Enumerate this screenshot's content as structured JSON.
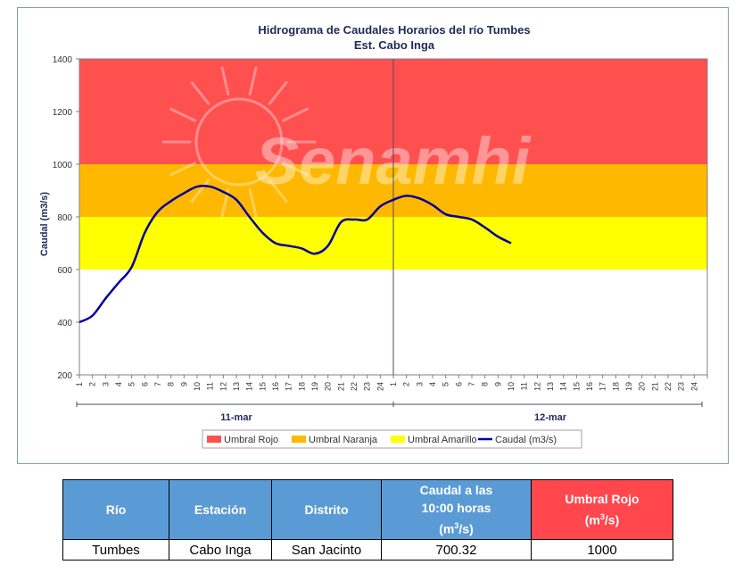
{
  "chart_data": {
    "type": "line",
    "title": "Hidrograma de Caudales Horarios del río Tumbes",
    "subtitle": "Est. Cabo Inga",
    "ylabel": "Caudal  (m3/s)",
    "ylim": [
      200,
      1400
    ],
    "yticks": [
      "200",
      "400",
      "600",
      "800",
      "1000",
      "1200",
      "1400"
    ],
    "x_tick_labels": [
      "1",
      "2",
      "3",
      "4",
      "5",
      "6",
      "7",
      "8",
      "9",
      "10",
      "11",
      "12",
      "13",
      "14",
      "15",
      "16",
      "17",
      "18",
      "19",
      "20",
      "21",
      "22",
      "23",
      "24",
      "1",
      "2",
      "3",
      "4",
      "5",
      "6",
      "7",
      "8",
      "9",
      "10",
      "11",
      "12",
      "13",
      "14",
      "15",
      "16",
      "17",
      "18",
      "19",
      "20",
      "21",
      "22",
      "23",
      "24"
    ],
    "day_labels": [
      "11-mar",
      "12-mar"
    ],
    "watermark": "Senamhi",
    "bands": [
      {
        "name": "Umbral Rojo",
        "from": 1000,
        "to": 1400,
        "color": "#ff5050"
      },
      {
        "name": "Umbral Naranja",
        "from": 800,
        "to": 1000,
        "color": "#ffb800"
      },
      {
        "name": "Umbral Amarillo",
        "from": 600,
        "to": 800,
        "color": "#ffff00"
      }
    ],
    "series": [
      {
        "name": "Caudal (m3/s)",
        "color": "#0000a0",
        "x": [
          1,
          2,
          3,
          4,
          5,
          6,
          7,
          8,
          9,
          10,
          11,
          12,
          13,
          14,
          15,
          16,
          17,
          18,
          19,
          20,
          21,
          22,
          23,
          24,
          25,
          26,
          27,
          28,
          29,
          30,
          31,
          32,
          33,
          34
        ],
        "values": [
          400,
          425,
          490,
          550,
          610,
          740,
          820,
          860,
          890,
          915,
          915,
          895,
          865,
          800,
          740,
          700,
          690,
          680,
          660,
          690,
          780,
          790,
          790,
          840,
          865,
          880,
          870,
          845,
          810,
          800,
          790,
          760,
          725,
          700
        ]
      }
    ],
    "legend_position": "bottom"
  },
  "table": {
    "headers": [
      "Río",
      "Estación",
      "Distrito",
      "Caudal a las",
      "10:00 horas",
      "(m",
      "3",
      "/s)",
      "Umbral Rojo",
      "(m",
      "3",
      "/s)"
    ],
    "row": [
      "Tumbes",
      "Cabo Inga",
      "San Jacinto",
      "700.32",
      "1000"
    ]
  },
  "colors": {
    "header_blue": "#5b9bd5",
    "header_red": "#ff474d"
  }
}
